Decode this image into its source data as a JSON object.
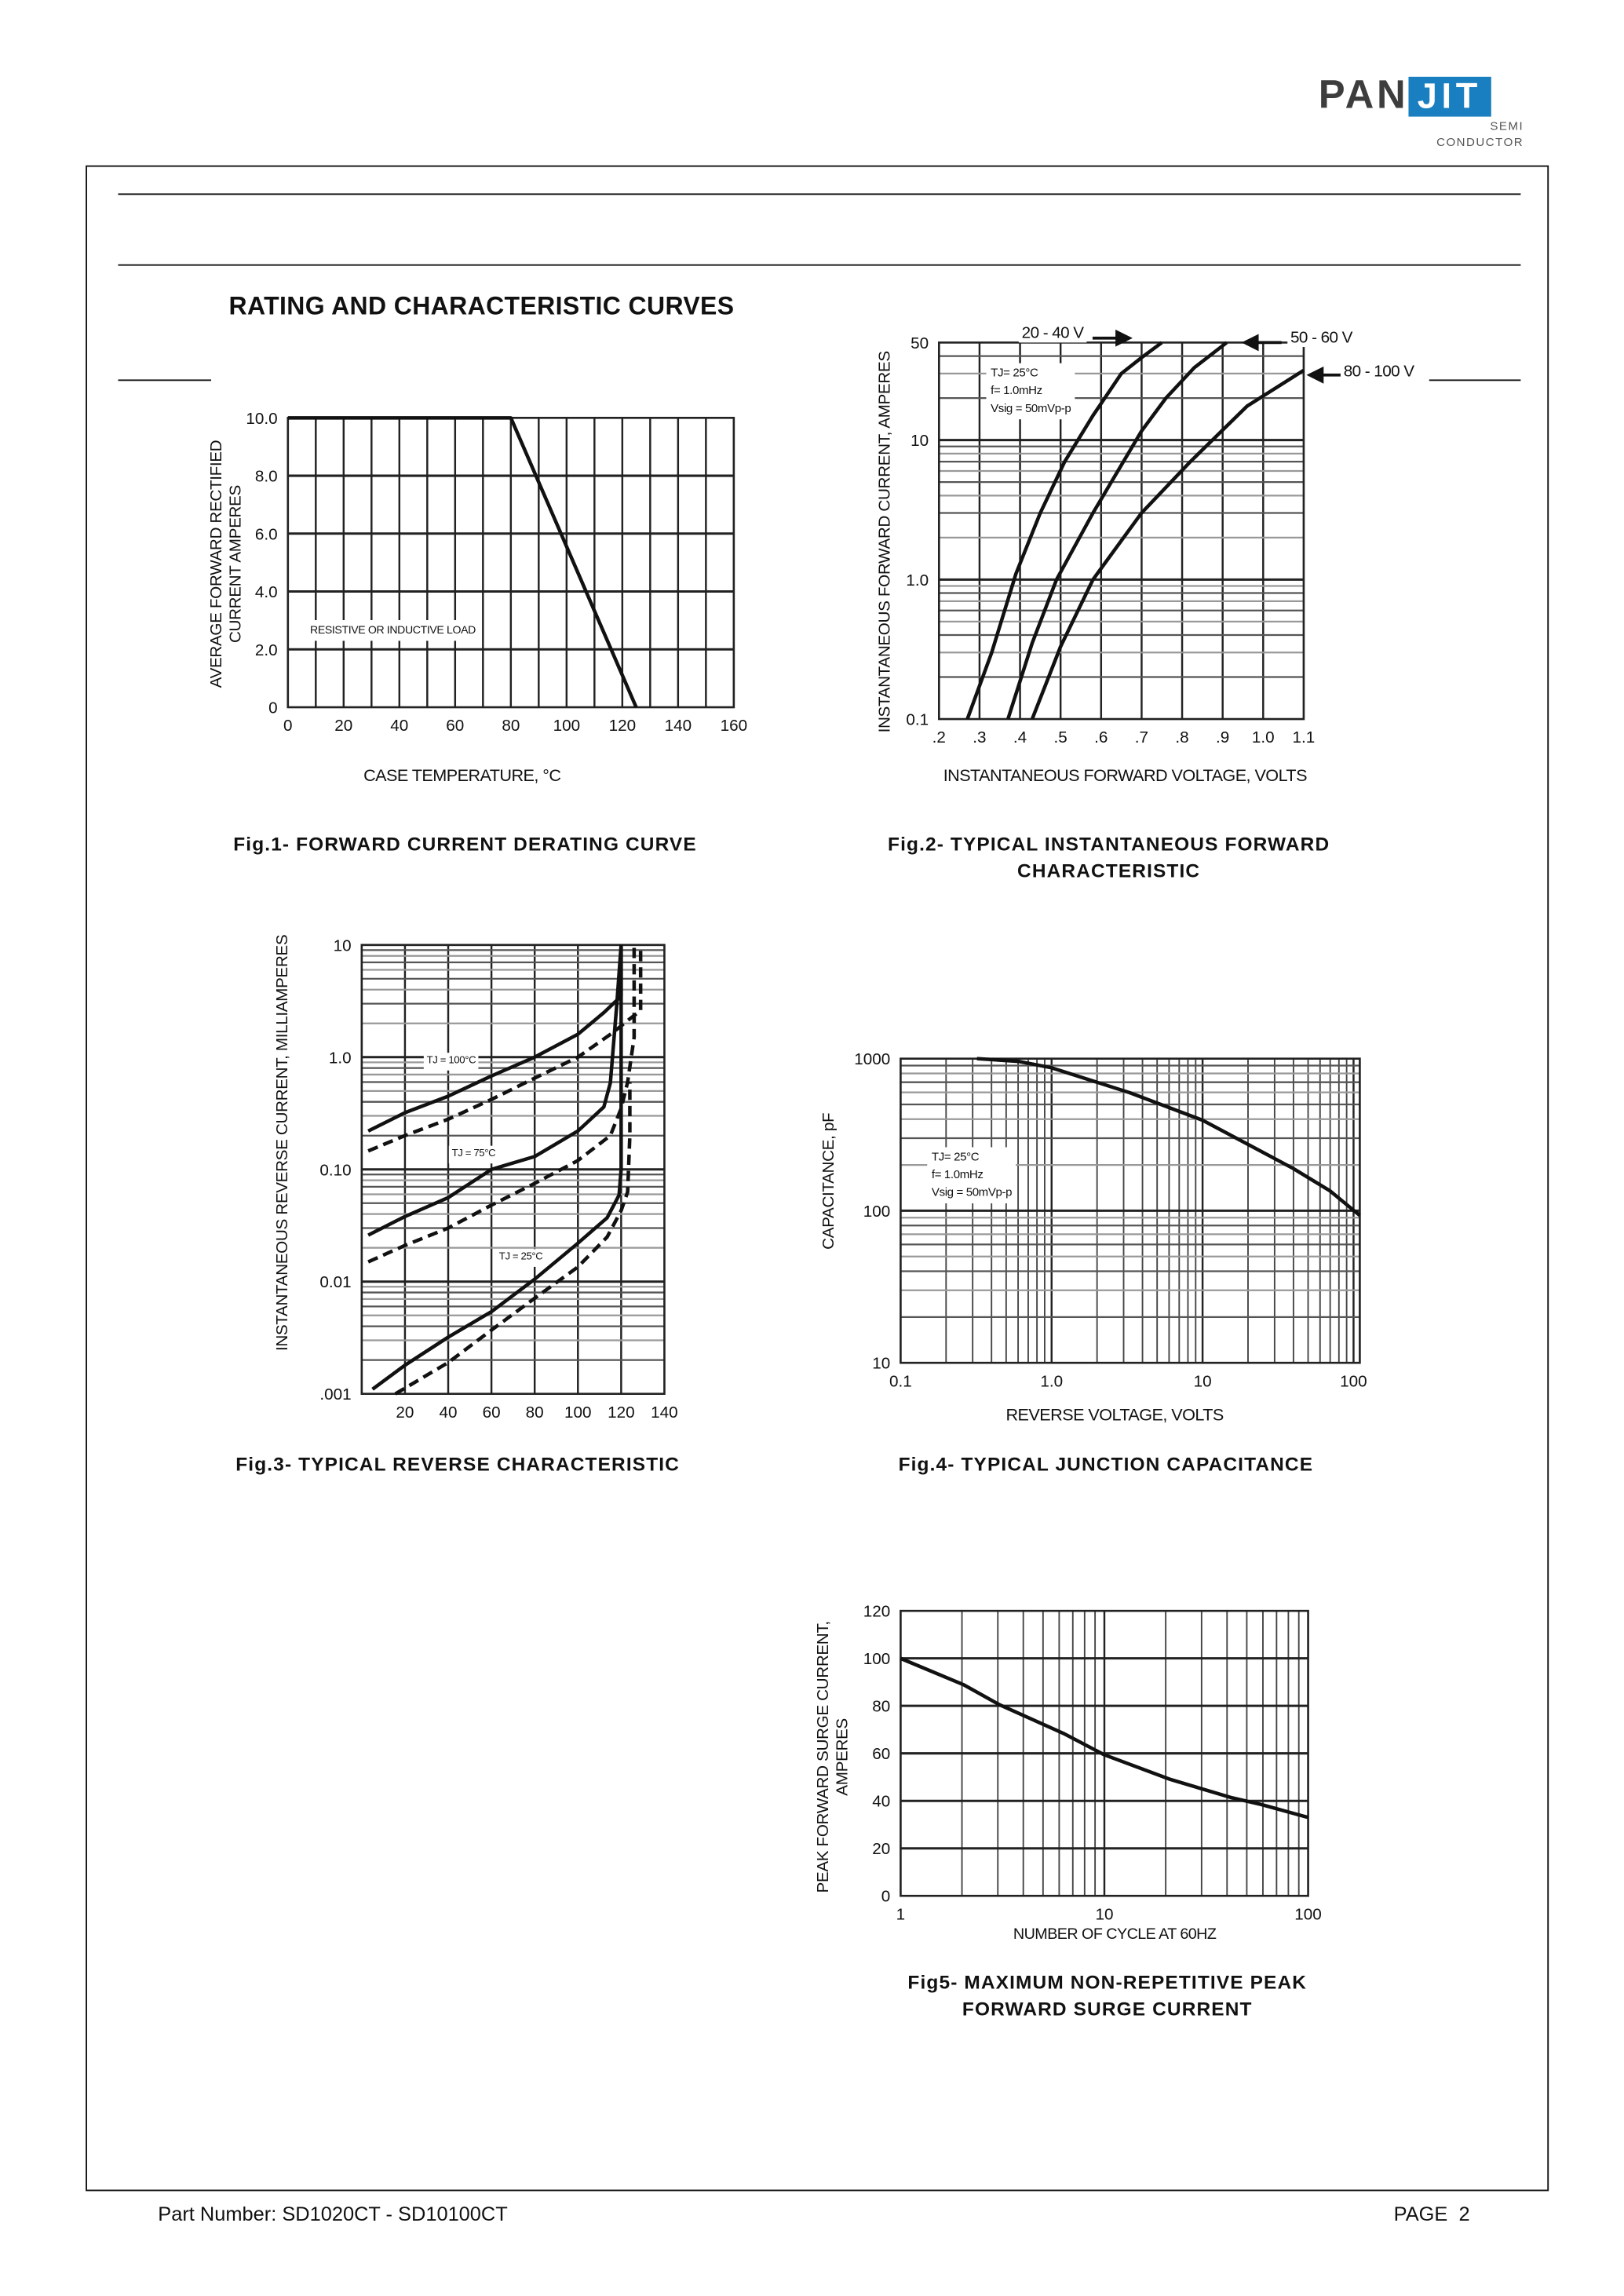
{
  "logo": {
    "brand_left": "PAN",
    "brand_right": "JIT",
    "sub1": "SEMI",
    "sub2": "CONDUCTOR",
    "brand_color": "#1a7fc1"
  },
  "section_title": "RATING AND CHARACTERISTIC CURVES",
  "footer": {
    "part_number": "Part Number: SD1020CT - SD10100CT",
    "page": "PAGE  2"
  },
  "chart_data": [
    {
      "id": "fig1",
      "type": "line",
      "caption": "Fig.1- FORWARD CURRENT DERATING CURVE",
      "xlabel": "CASE TEMPERATURE, °C",
      "ylabel": [
        "AVERAGE FORWARD RECTIFIED",
        "CURRENT AMPERES"
      ],
      "x_scale": "linear",
      "y_scale": "linear",
      "xlim": [
        0,
        160
      ],
      "ylim": [
        0,
        10
      ],
      "grid": true,
      "xticks": [
        0,
        20,
        40,
        60,
        80,
        100,
        120,
        140,
        160
      ],
      "xtick_labels": [
        "0",
        "20",
        "40",
        "60",
        "80",
        "100",
        "120",
        "140",
        "160"
      ],
      "yticks": [
        0,
        2,
        4,
        6,
        8,
        10
      ],
      "ytick_labels": [
        "0",
        "2.0",
        "4.0",
        "6.0",
        "8.0",
        "10.0"
      ],
      "annotations": [
        {
          "text": "RESISTIVE OR INDUCTIVE LOAD",
          "x": 5,
          "y": 2.8
        }
      ],
      "series": [
        {
          "style": "solid",
          "points": [
            [
              0,
              10
            ],
            [
              80,
              10
            ],
            [
              125,
              0
            ]
          ]
        }
      ]
    },
    {
      "id": "fig2",
      "type": "line",
      "caption": [
        "Fig.2- TYPICAL INSTANTANEOUS FORWARD",
        "CHARACTERISTIC"
      ],
      "xlabel": "INSTANTANEOUS FORWARD VOLTAGE, VOLTS",
      "ylabel": [
        "INSTANTANEOUS FORWARD CURRENT, AMPERES"
      ],
      "x_scale": "linear",
      "y_scale": "log",
      "xlim": [
        0.2,
        1.1
      ],
      "ylim": [
        0.1,
        50
      ],
      "grid": true,
      "xticks": [
        0.2,
        0.3,
        0.4,
        0.5,
        0.6,
        0.7,
        0.8,
        0.9,
        1.0,
        1.1
      ],
      "xtick_labels": [
        ".2",
        ".3",
        ".4",
        ".5",
        ".6",
        ".7",
        ".8",
        ".9",
        "1.0",
        "1.1"
      ],
      "yticks": [
        0.1,
        1,
        10,
        50
      ],
      "ytick_labels": [
        "0.1",
        "1.0",
        "10",
        "50"
      ],
      "conditions": [
        "TJ= 25°C",
        "f= 1.0mHz",
        "Vsig = 50mVp-p"
      ],
      "series": [
        {
          "name": "20 - 40 V",
          "style": "solid",
          "points": [
            [
              0.27,
              0.1
            ],
            [
              0.33,
              0.3
            ],
            [
              0.39,
              1.1
            ],
            [
              0.45,
              3
            ],
            [
              0.51,
              7
            ],
            [
              0.58,
              15
            ],
            [
              0.65,
              30
            ],
            [
              0.7,
              39
            ],
            [
              0.75,
              50
            ]
          ]
        },
        {
          "name": "50 - 60 V",
          "style": "solid",
          "points": [
            [
              0.37,
              0.1
            ],
            [
              0.43,
              0.35
            ],
            [
              0.49,
              1.0
            ],
            [
              0.58,
              3.0
            ],
            [
              0.7,
              11.6
            ],
            [
              0.76,
              20
            ],
            [
              0.83,
              33
            ],
            [
              0.91,
              50
            ]
          ]
        },
        {
          "name": "80 - 100 V",
          "style": "solid",
          "points": [
            [
              0.43,
              0.1
            ],
            [
              0.5,
              0.33
            ],
            [
              0.58,
              1.0
            ],
            [
              0.7,
              3.0
            ],
            [
              0.82,
              7
            ],
            [
              0.96,
              17.5
            ],
            [
              1.1,
              31.6
            ]
          ]
        }
      ]
    },
    {
      "id": "fig3",
      "type": "line",
      "caption": "Fig.3- TYPICAL REVERSE CHARACTERISTIC",
      "ylabel": [
        "INSTANTANEOUS REVERSE CURRENT, MILLIAMPERES"
      ],
      "x_scale": "linear",
      "y_scale": "log",
      "xlim": [
        0,
        140
      ],
      "ylim": [
        0.001,
        10
      ],
      "grid": true,
      "xticks": [
        20,
        40,
        60,
        80,
        100,
        120,
        140
      ],
      "xtick_labels": [
        "20",
        "40",
        "60",
        "80",
        "100",
        "120",
        "140"
      ],
      "yticks": [
        0.001,
        0.01,
        0.1,
        1,
        10
      ],
      "ytick_labels": [
        ".001",
        "0.01",
        "0.10",
        "1.0",
        "10"
      ],
      "annotations": [
        {
          "text": "TJ = 100°C",
          "x": 43,
          "y": 0.95
        },
        {
          "text": "TJ = 75°C",
          "x": 51,
          "y": 0.15
        },
        {
          "text": "TJ = 25°C",
          "x": 74,
          "y": 0.017
        }
      ],
      "series": [
        {
          "style": "solid",
          "points": [
            [
              3,
              0.22
            ],
            [
              20,
              0.32
            ],
            [
              40,
              0.45
            ],
            [
              60,
              0.68
            ],
            [
              80,
              1.0
            ],
            [
              100,
              1.6
            ],
            [
              112,
              2.5
            ],
            [
              120,
              3.5
            ],
            [
              120,
              10
            ]
          ]
        },
        {
          "style": "dashed",
          "points": [
            [
              3,
              0.146
            ],
            [
              20,
              0.2
            ],
            [
              40,
              0.28
            ],
            [
              60,
              0.42
            ],
            [
              80,
              0.65
            ],
            [
              100,
              1.0
            ],
            [
              116,
              1.65
            ],
            [
              124,
              2.2
            ],
            [
              129,
              2.6
            ],
            [
              129,
              10
            ]
          ]
        },
        {
          "style": "solid",
          "points": [
            [
              3,
              0.026
            ],
            [
              20,
              0.038
            ],
            [
              40,
              0.056
            ],
            [
              60,
              0.1
            ],
            [
              80,
              0.13
            ],
            [
              100,
              0.22
            ],
            [
              112,
              0.36
            ],
            [
              115,
              0.59
            ],
            [
              118,
              3
            ],
            [
              120,
              10
            ]
          ]
        },
        {
          "style": "dashed",
          "points": [
            [
              3,
              0.015
            ],
            [
              20,
              0.021
            ],
            [
              40,
              0.03
            ],
            [
              60,
              0.048
            ],
            [
              80,
              0.075
            ],
            [
              100,
              0.12
            ],
            [
              115,
              0.2
            ],
            [
              120,
              0.35
            ],
            [
              123,
              0.6
            ],
            [
              126,
              1.5
            ],
            [
              126,
              10
            ]
          ]
        },
        {
          "style": "solid",
          "points": [
            [
              5,
              0.0011
            ],
            [
              20,
              0.0018
            ],
            [
              40,
              0.0032
            ],
            [
              60,
              0.0054
            ],
            [
              80,
              0.0105
            ],
            [
              100,
              0.022
            ],
            [
              113.5,
              0.037
            ],
            [
              119,
              0.059
            ],
            [
              120,
              0.1
            ],
            [
              120,
              10
            ]
          ]
        },
        {
          "style": "dashed",
          "points": [
            [
              15.6,
              0.001
            ],
            [
              40,
              0.0019
            ],
            [
              60,
              0.0037
            ],
            [
              80,
              0.0071
            ],
            [
              100,
              0.0135
            ],
            [
              113.5,
              0.025
            ],
            [
              120,
              0.043
            ],
            [
              123,
              0.063
            ],
            [
              124,
              0.2
            ],
            [
              124,
              0.6
            ]
          ]
        }
      ]
    },
    {
      "id": "fig4",
      "type": "line",
      "caption": "Fig.4- TYPICAL JUNCTION CAPACITANCE",
      "xlabel": "REVERSE VOLTAGE, VOLTS",
      "ylabel": [
        "CAPACITANCE, pF"
      ],
      "x_scale": "log",
      "y_scale": "log",
      "xlim": [
        0.1,
        110
      ],
      "ylim": [
        10,
        1000
      ],
      "grid": true,
      "xticks": [
        0.1,
        1,
        10,
        100
      ],
      "xtick_labels": [
        "0.1",
        "1.0",
        "10",
        "100"
      ],
      "yticks": [
        10,
        100,
        1000
      ],
      "ytick_labels": [
        "10",
        "100",
        "1000"
      ],
      "conditions": [
        "TJ= 25°C",
        "f= 1.0mHz",
        "Vsig = 50mVp-p"
      ],
      "series": [
        {
          "style": "solid",
          "points": [
            [
              0.32,
              1000
            ],
            [
              0.6,
              960
            ],
            [
              1,
              870
            ],
            [
              3.3,
              597
            ],
            [
              10,
              394
            ],
            [
              22,
              260
            ],
            [
              40,
              189
            ],
            [
              70,
              135
            ],
            [
              110,
              93
            ]
          ]
        }
      ]
    },
    {
      "id": "fig5",
      "type": "line",
      "caption": [
        "Fig5- MAXIMUM NON-REPETITIVE PEAK",
        "FORWARD SURGE CURRENT"
      ],
      "xlabel": "NUMBER OF CYCLE AT 60HZ",
      "ylabel": [
        "PEAK FORWARD SURGE CURRENT,",
        "AMPERES"
      ],
      "x_scale": "log",
      "y_scale": "linear",
      "xlim": [
        1,
        100
      ],
      "ylim": [
        0,
        120
      ],
      "grid": true,
      "xticks": [
        1,
        10,
        100
      ],
      "xtick_labels": [
        "1",
        "10",
        "100"
      ],
      "yticks": [
        0,
        20,
        40,
        60,
        80,
        100,
        120
      ],
      "ytick_labels": [
        "0",
        "20",
        "40",
        "60",
        "80",
        "100",
        "120"
      ],
      "series": [
        {
          "style": "solid",
          "points": [
            [
              1,
              100
            ],
            [
              2.05,
              88.8
            ],
            [
              3.07,
              80.4
            ],
            [
              6.3,
              68.4
            ],
            [
              10,
              59.4
            ],
            [
              20.8,
              49.2
            ],
            [
              41.8,
              41.4
            ],
            [
              59,
              38.4
            ],
            [
              100,
              33
            ]
          ]
        }
      ]
    }
  ]
}
